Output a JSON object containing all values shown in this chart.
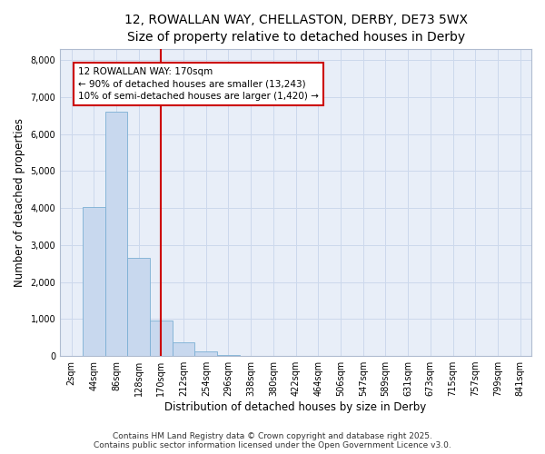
{
  "title_line1": "12, ROWALLAN WAY, CHELLASTON, DERBY, DE73 5WX",
  "title_line2": "Size of property relative to detached houses in Derby",
  "xlabel": "Distribution of detached houses by size in Derby",
  "ylabel": "Number of detached properties",
  "bar_labels": [
    "2sqm",
    "44sqm",
    "86sqm",
    "128sqm",
    "170sqm",
    "212sqm",
    "254sqm",
    "296sqm",
    "338sqm",
    "380sqm",
    "422sqm",
    "464sqm",
    "506sqm",
    "547sqm",
    "589sqm",
    "631sqm",
    "673sqm",
    "715sqm",
    "757sqm",
    "799sqm",
    "841sqm"
  ],
  "bar_values": [
    0,
    4020,
    6600,
    2640,
    970,
    380,
    120,
    30,
    5,
    2,
    1,
    0,
    0,
    0,
    0,
    0,
    0,
    0,
    0,
    0,
    0
  ],
  "bar_color": "#c8d8ee",
  "bar_edge_color": "#7bafd4",
  "vline_index": 4,
  "vline_color": "#cc0000",
  "annotation_text_line1": "12 ROWALLAN WAY: 170sqm",
  "annotation_text_line2": "← 90% of detached houses are smaller (13,243)",
  "annotation_text_line3": "10% of semi-detached houses are larger (1,420) →",
  "ylim": [
    0,
    8300
  ],
  "yticks": [
    0,
    1000,
    2000,
    3000,
    4000,
    5000,
    6000,
    7000,
    8000
  ],
  "grid_color": "#ccd8ec",
  "background_color": "#e8eef8",
  "footer_line1": "Contains HM Land Registry data © Crown copyright and database right 2025.",
  "footer_line2": "Contains public sector information licensed under the Open Government Licence v3.0.",
  "title_fontsize": 10,
  "subtitle_fontsize": 9,
  "annotation_fontsize": 7.5,
  "axis_label_fontsize": 8.5,
  "tick_fontsize": 7,
  "footer_fontsize": 6.5
}
